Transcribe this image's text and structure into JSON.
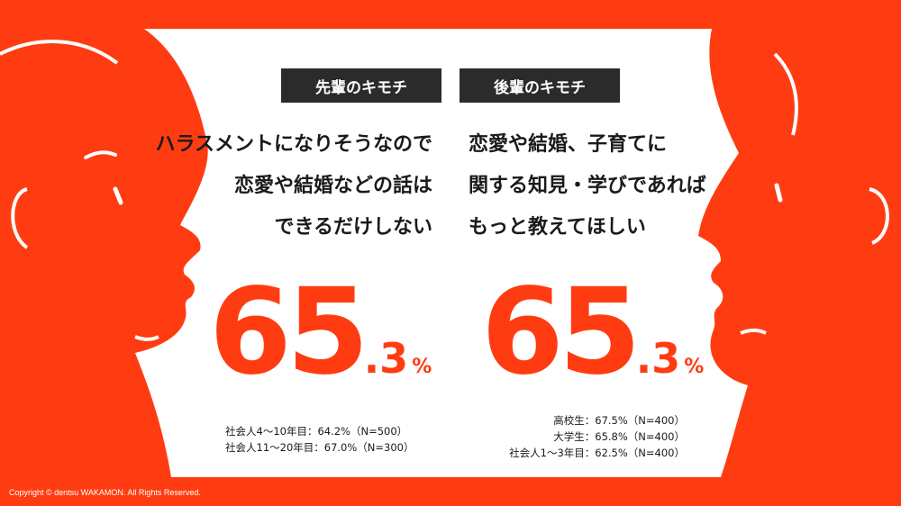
{
  "colors": {
    "brand_red": "#ff3c11",
    "tag_bg": "#2b2b2b",
    "panel": "#ffffff"
  },
  "left": {
    "tag": "先輩のキモチ",
    "quote_lines": [
      "ハラスメントになりそうなので",
      "恋愛や結婚などの話は",
      "できるだけしない"
    ],
    "percent_main": "65",
    "percent_decimal": ".3",
    "percent_unit": "%",
    "notes": [
      "社会人4〜10年目：64.2%（N=500）",
      "社会人11〜20年目：67.0%（N=300）"
    ]
  },
  "right": {
    "tag": "後輩のキモチ",
    "quote_lines": [
      "恋愛や結婚、子育てに",
      "関する知見・学びであれば",
      "もっと教えてほしい"
    ],
    "percent_main": "65",
    "percent_decimal": ".3",
    "percent_unit": "%",
    "notes": [
      "高校生：67.5%（N=400）",
      "大学生：65.8%（N=400）",
      "社会人1〜3年目：62.5%（N=400）"
    ]
  },
  "footer": {
    "copyright": "Copyright © dentsu WAKAMON. All Rights Reserved."
  }
}
